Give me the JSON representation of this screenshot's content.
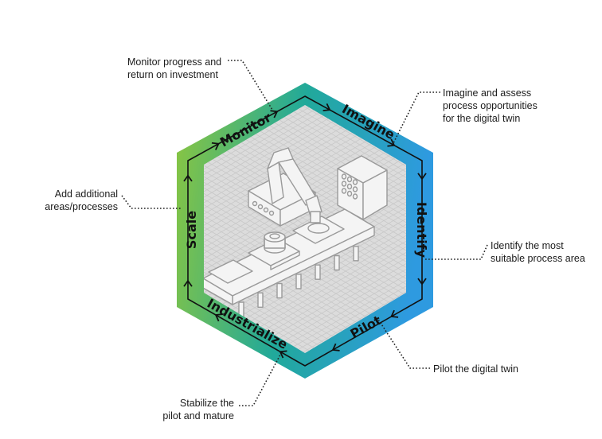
{
  "colors": {
    "gradient_left": "#8cc63f",
    "gradient_mid": "#21a99a",
    "gradient_right": "#2e9ae0",
    "panel": "#dcdcdc",
    "grid": "#c8c8c8",
    "machine_fill": "#f4f4f4",
    "machine_stroke": "#9a9a9a",
    "leader": "#222222"
  },
  "icons": [
    "cycle-arrow-icon",
    "industrial-machine-illustration"
  ],
  "stages": [
    {
      "label": "Monitor"
    },
    {
      "label": "Imagine"
    },
    {
      "label": "Identify"
    },
    {
      "label": "Pilot"
    },
    {
      "label": "Industrialize"
    },
    {
      "label": "Scale"
    }
  ],
  "callouts": {
    "monitor": "Monitor progress and\nreturn on investment",
    "imagine": "Imagine and assess\nprocess opportunities\nfor the digital twin",
    "identify": "Identify the most\nsuitable process area",
    "pilot": "Pilot the digital twin",
    "industrialize": "Stabilize the\npilot and mature",
    "scale": "Add additional\nareas/processes"
  }
}
